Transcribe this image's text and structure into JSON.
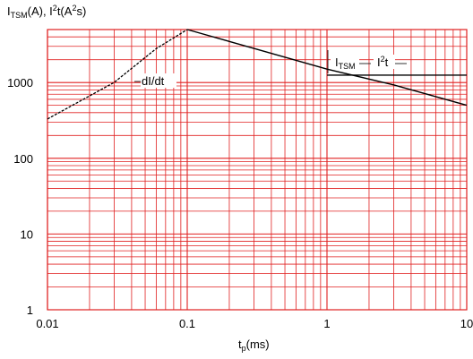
{
  "chart_data": {
    "type": "line",
    "x_scale": "log",
    "y_scale": "log",
    "xlim": [
      0.01,
      10
    ],
    "ylim": [
      1,
      5000
    ],
    "grid": true,
    "grid_color": "#e02020",
    "line_color": "#000000",
    "x_ticks": [
      "0.01",
      "0.1",
      "1",
      "10"
    ],
    "y_ticks": [
      "1",
      "10",
      "100",
      "1000"
    ],
    "ylabel": {
      "a": "I",
      "a_sub": "TSM",
      "b": "(A), I",
      "b_sup": "2",
      "c": "t(A",
      "c_sup": "2",
      "d": "s)"
    },
    "xlabel": {
      "a": "t",
      "a_sub": "p",
      "b": "(ms)"
    },
    "series": [
      {
        "name": "dI/dt",
        "style": "dashed",
        "x": [
          0.01,
          0.03,
          0.06,
          0.1
        ],
        "y": [
          330,
          1000,
          2800,
          5000
        ]
      },
      {
        "name": "I_TSM",
        "style": "solid",
        "x": [
          0.1,
          1,
          3,
          10
        ],
        "y": [
          5000,
          1500,
          930,
          500
        ]
      },
      {
        "name": "I²t",
        "style": "solid",
        "x": [
          1,
          10
        ],
        "y": [
          1250,
          1250
        ]
      }
    ],
    "annotations": {
      "didt": "dI/dt",
      "itsm_main": "I",
      "itsm_sub": "TSM",
      "i2t_main": "I",
      "i2t_sup": "2",
      "i2t_tail": "t"
    }
  }
}
